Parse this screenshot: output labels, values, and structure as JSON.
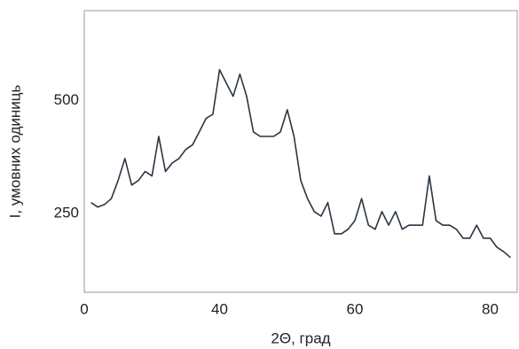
{
  "chart_data": {
    "type": "line",
    "x_label": "2Θ, град",
    "y_label": "I, умовних одиниць",
    "x": [
      21,
      22,
      23,
      24,
      25,
      26,
      27,
      28,
      29,
      30,
      31,
      32,
      33,
      34,
      35,
      36,
      37,
      38,
      39,
      40,
      41,
      42,
      43,
      44,
      45,
      46,
      47,
      48,
      49,
      50,
      51,
      52,
      53,
      54,
      55,
      56,
      57,
      58,
      59,
      60,
      61,
      62,
      63,
      64,
      65,
      66,
      67,
      68,
      69,
      70,
      71,
      72,
      73,
      74,
      75,
      76,
      77,
      78,
      79,
      80,
      81,
      82,
      83
    ],
    "series": [
      {
        "color": "#2b3540",
        "values": [
          274,
          264,
          270,
          283,
          323,
          372,
          313,
          323,
          343,
          333,
          421,
          343,
          362,
          372,
          392,
          402,
          431,
          461,
          470,
          569,
          539,
          510,
          559,
          510,
          431,
          421,
          421,
          421,
          431,
          480,
          421,
          323,
          283,
          254,
          244,
          274,
          205,
          205,
          215,
          234,
          283,
          224,
          215,
          254,
          224,
          254,
          215,
          224,
          224,
          224,
          333,
          234,
          224,
          224,
          215,
          195,
          195,
          224,
          195,
          195,
          175,
          165,
          152
        ]
      }
    ],
    "xlim": [
      20,
      84
    ],
    "xticks": [
      {
        "value": 20,
        "label": "0"
      },
      40,
      60,
      80
    ],
    "ylim": [
      75,
      700
    ],
    "yticks": [
      250,
      500
    ],
    "grid": false
  }
}
